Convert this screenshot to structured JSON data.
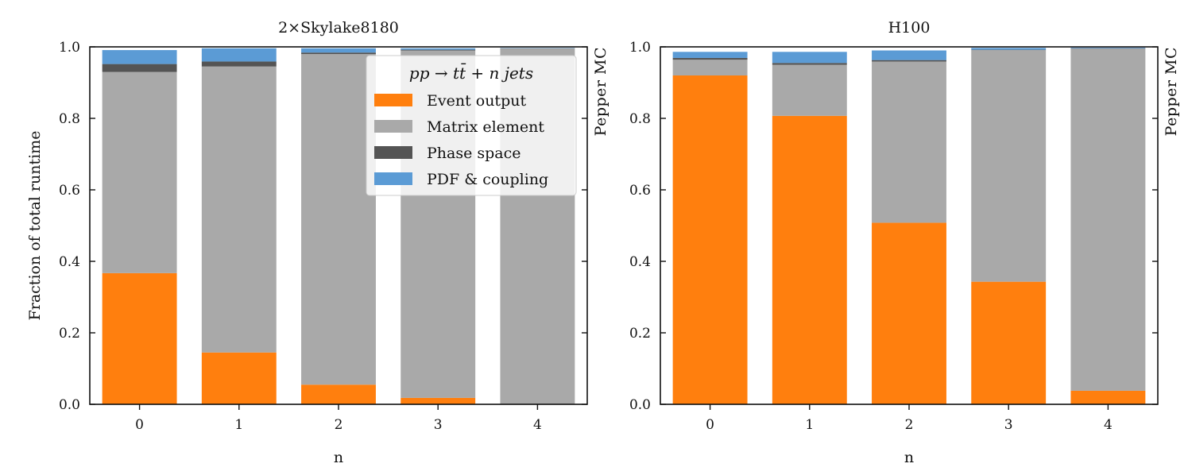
{
  "colors": {
    "event_output": "#ff7f0e",
    "matrix_element": "#a9a9a9",
    "phase_space": "#545454",
    "pdf_coupling": "#5b9bd5"
  },
  "chart_data": [
    {
      "type": "bar",
      "stacked": true,
      "title": "2×Skylake8180",
      "side_label": "Pepper MC",
      "xlabel": "n",
      "ylabel": "Fraction of total runtime",
      "ylim": [
        0,
        1
      ],
      "yticks": [
        "0.0",
        "0.2",
        "0.4",
        "0.6",
        "0.8",
        "1.0"
      ],
      "categories": [
        "0",
        "1",
        "2",
        "3",
        "4"
      ],
      "legend": {
        "title": "pp → tt̄ + n jets",
        "position": "top-right",
        "entries": [
          "Event output",
          "Matrix element",
          "Phase space",
          "PDF & coupling"
        ]
      },
      "series": [
        {
          "name": "Event output",
          "color_key": "event_output",
          "values": [
            0.367,
            0.145,
            0.055,
            0.018,
            0.0
          ]
        },
        {
          "name": "Matrix element",
          "color_key": "matrix_element",
          "values": [
            0.563,
            0.8,
            0.925,
            0.972,
            0.995
          ]
        },
        {
          "name": "Phase space",
          "color_key": "phase_space",
          "values": [
            0.022,
            0.014,
            0.004,
            0.002,
            0.001
          ]
        },
        {
          "name": "PDF & coupling",
          "color_key": "pdf_coupling",
          "values": [
            0.039,
            0.037,
            0.012,
            0.004,
            0.001
          ]
        }
      ]
    },
    {
      "type": "bar",
      "stacked": true,
      "title": "H100",
      "side_label": "Pepper MC",
      "xlabel": "n",
      "ylabel": "",
      "ylim": [
        0,
        1
      ],
      "yticks": [
        "0.0",
        "0.2",
        "0.4",
        "0.6",
        "0.8",
        "1.0"
      ],
      "categories": [
        "0",
        "1",
        "2",
        "3",
        "4"
      ],
      "series": [
        {
          "name": "Event output",
          "color_key": "event_output",
          "values": [
            0.92,
            0.807,
            0.508,
            0.343,
            0.038
          ]
        },
        {
          "name": "Matrix element",
          "color_key": "matrix_element",
          "values": [
            0.044,
            0.143,
            0.451,
            0.648,
            0.957
          ]
        },
        {
          "name": "Phase space",
          "color_key": "phase_space",
          "values": [
            0.005,
            0.005,
            0.004,
            0.001,
            0.001
          ]
        },
        {
          "name": "PDF & coupling",
          "color_key": "pdf_coupling",
          "values": [
            0.017,
            0.031,
            0.027,
            0.005,
            0.002
          ]
        }
      ]
    }
  ]
}
